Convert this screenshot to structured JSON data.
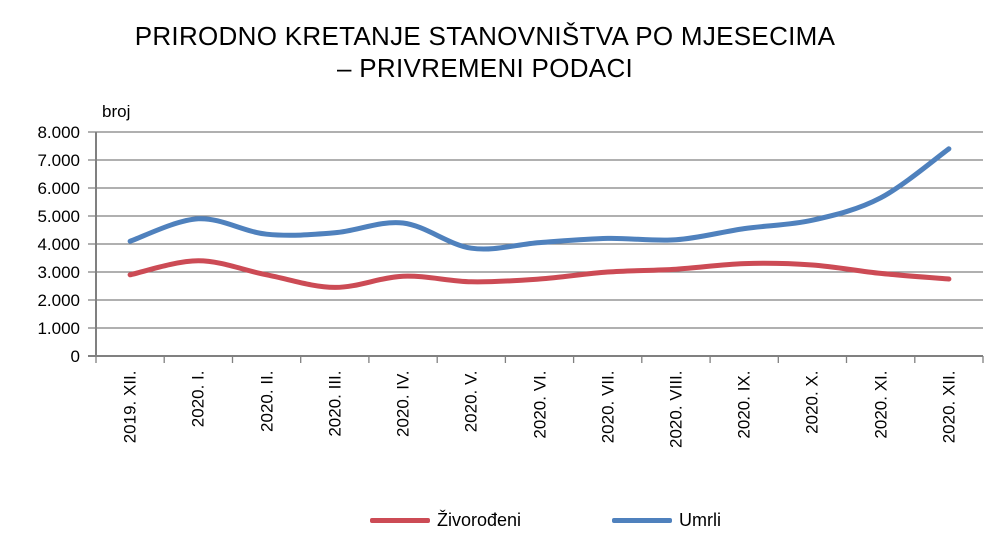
{
  "title": {
    "line1": "PRIRODNO KRETANJE STANOVNIŠTVA PO MJESECIMA",
    "line2": "– PRIVREMENI PODACI"
  },
  "chart_data": {
    "type": "line",
    "title": "PRIRODNO KRETANJE STANOVNIŠTVA PO MJESECIMA – PRIVREMENI PODACI",
    "ylabel": "broj",
    "xlabel": "",
    "ylim": [
      0,
      8000
    ],
    "ytick_step": 1000,
    "ytick_labels": [
      "0",
      "1.000",
      "2.000",
      "3.000",
      "4.000",
      "5.000",
      "6.000",
      "7.000",
      "8.000"
    ],
    "grid": true,
    "line_style": "smooth",
    "legend_position": "bottom",
    "categories": [
      "2019. XII.",
      "2020. I.",
      "2020. II.",
      "2020. III.",
      "2020. IV.",
      "2020. V.",
      "2020. VI.",
      "2020. VII.",
      "2020. VIII.",
      "2020. IX.",
      "2020. X.",
      "2020. XI.",
      "2020. XII."
    ],
    "series": [
      {
        "name": "Živorođeni",
        "color": "#CC4B55",
        "values": [
          2900,
          3400,
          2900,
          2450,
          2850,
          2650,
          2750,
          3000,
          3100,
          3300,
          3250,
          2950,
          2750
        ]
      },
      {
        "name": "Umrli",
        "color": "#4F81BD",
        "values": [
          4100,
          4900,
          4350,
          4400,
          4750,
          3850,
          4050,
          4200,
          4150,
          4550,
          4850,
          5650,
          7400
        ]
      }
    ],
    "axis_color": "#808080",
    "grid_color": "#808080",
    "text_color": "#000000"
  }
}
